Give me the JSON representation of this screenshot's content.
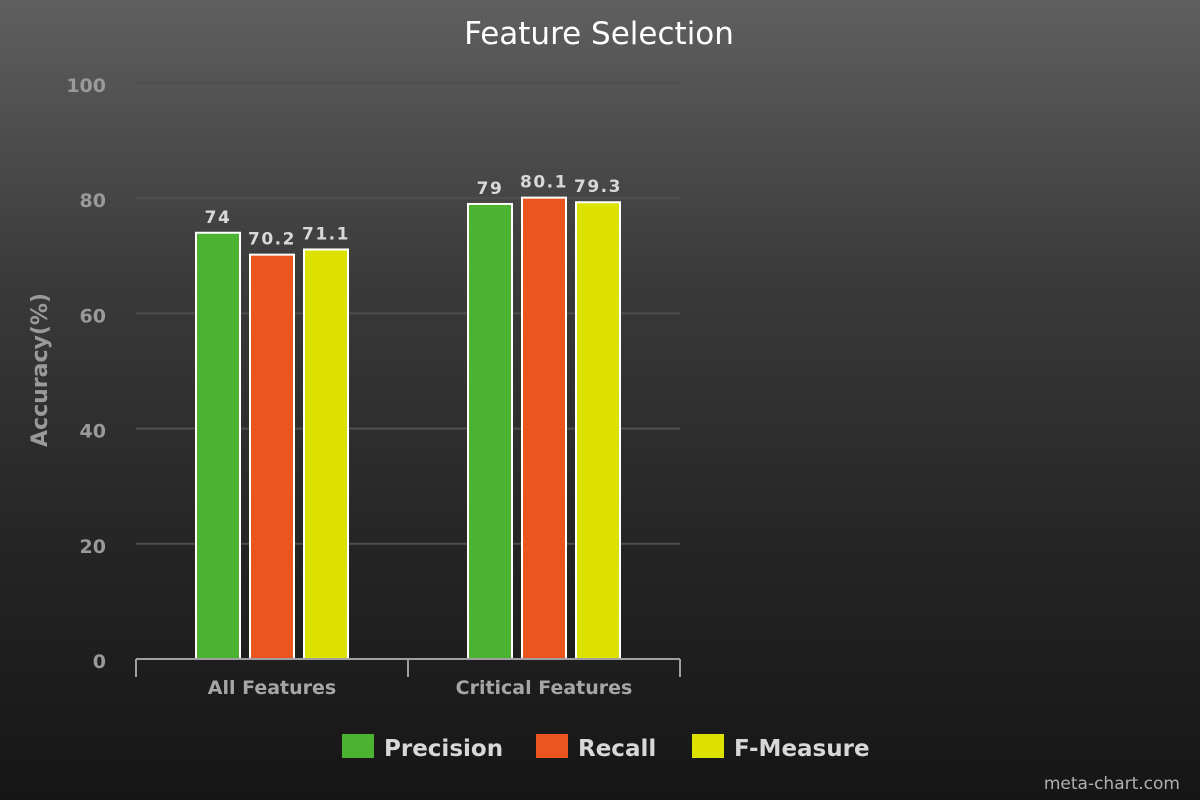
{
  "chart_data": {
    "type": "bar",
    "title": "Feature Selection",
    "ylabel": "Accuracy(%)",
    "xlabel": "",
    "ylim": [
      0,
      100
    ],
    "yticks": [
      0,
      20,
      40,
      60,
      80,
      100
    ],
    "categories": [
      "All Features",
      "Critical Features"
    ],
    "series": [
      {
        "name": "Precision",
        "color": "#4cb232",
        "values": [
          74,
          79
        ],
        "labels": [
          "74",
          "79"
        ]
      },
      {
        "name": "Recall",
        "color": "#ea561e",
        "values": [
          70.2,
          80.1
        ],
        "labels": [
          "70.2",
          "80.1"
        ]
      },
      {
        "name": "F-Measure",
        "color": "#dde100",
        "values": [
          71.1,
          79.3
        ],
        "labels": [
          "71.1",
          "79.3"
        ]
      }
    ],
    "grid": true,
    "legend_position": "bottom"
  },
  "credit": "meta-chart.com"
}
